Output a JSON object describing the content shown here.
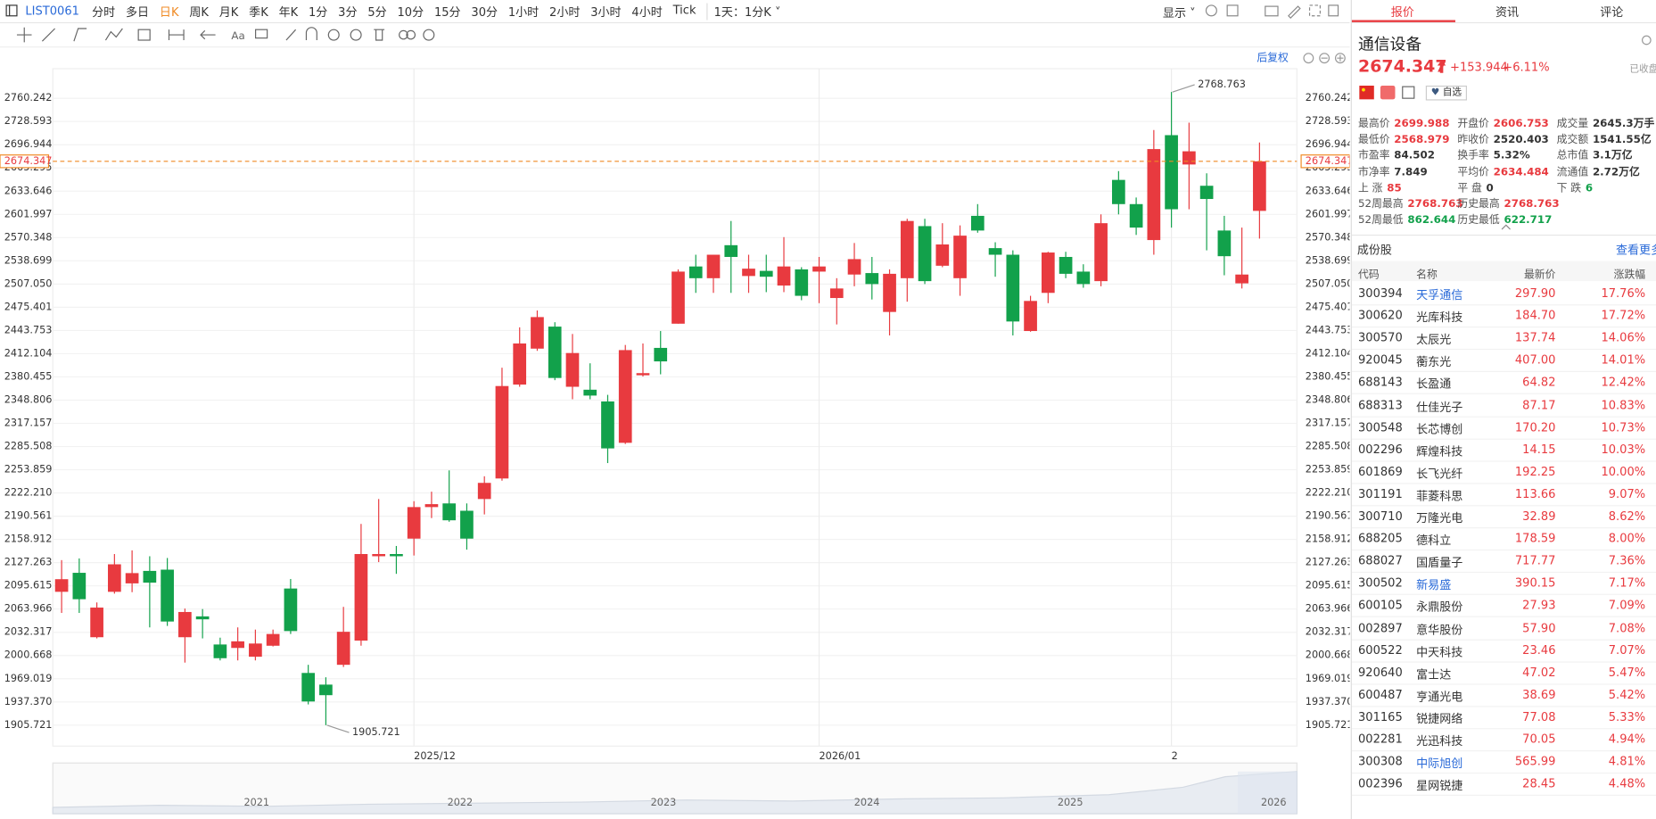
{
  "toolbar": {
    "symbol": "LIST0061",
    "intervals": [
      "分时",
      "多日",
      "日K",
      "周K",
      "月K",
      "季K",
      "年K",
      "1分",
      "3分",
      "5分",
      "10分",
      "15分",
      "30分",
      "1小时",
      "2小时",
      "3小时",
      "4小时",
      "Tick"
    ],
    "active_interval": 2,
    "period": "1天：1分K",
    "display": "显示"
  },
  "chart_data": {
    "type": "candlestick",
    "adjustment": "后复权",
    "up_color": "#e83a3f",
    "down_color": "#12a14b",
    "price_line_color": "#f08a24",
    "grid": true,
    "right_axis": true,
    "categories": [
      null,
      null,
      null,
      null,
      null,
      null,
      null,
      null,
      null,
      null,
      null,
      null,
      null,
      null,
      null,
      null,
      null,
      null,
      null,
      null,
      "2025/12",
      null,
      null,
      null,
      null,
      null,
      null,
      null,
      null,
      null,
      null,
      null,
      null,
      null,
      null,
      null,
      null,
      null,
      null,
      null,
      null,
      null,
      null,
      "2026/01",
      null,
      null,
      null,
      null,
      null,
      null,
      null,
      null,
      null,
      null,
      null,
      null,
      null,
      null,
      null,
      null,
      null,
      null,
      null,
      "2",
      null,
      null,
      null,
      null,
      null
    ],
    "open": [
      2087.5,
      2113.4,
      2025.6,
      2087.5,
      2099,
      2116,
      2117.7,
      2025.6,
      2054,
      2015.7,
      2011,
      1999,
      2014,
      2092,
      1976.9,
      1961,
      1988,
      2021,
      2136,
      2139,
      2160,
      2203,
      2208,
      2198,
      2214,
      2242,
      2370,
      2419,
      2449,
      2367,
      2363,
      2347,
      2290.6,
      2382.7,
      2420,
      2453,
      2531,
      2515,
      2560,
      2518,
      2525,
      2505,
      2527,
      2524,
      2488,
      2520,
      2522,
      2469,
      2515,
      2586,
      2532,
      2515,
      2600,
      2556,
      2547,
      2443,
      2495,
      2544,
      2524,
      2511,
      2649,
      2616,
      2567,
      2710,
      2670,
      2641,
      2580,
      2508,
      2606.753
    ],
    "high": [
      2130.7,
      2133,
      2073,
      2139,
      2144,
      2136,
      2133.6,
      2064.7,
      2064,
      2025,
      2039,
      2036,
      2036,
      2105,
      1988,
      1971,
      2067,
      2180,
      2214,
      2150,
      2211,
      2224,
      2253,
      2208,
      2245,
      2393,
      2448,
      2471,
      2455,
      2439,
      2399,
      2356,
      2424,
      2426,
      2443,
      2527,
      2547,
      2547,
      2593,
      2547,
      2547,
      2571,
      2530,
      2544,
      2515,
      2563,
      2544,
      2527,
      2596,
      2596,
      2590,
      2587,
      2616,
      2564,
      2553,
      2491,
      2551,
      2551,
      2534,
      2602,
      2661,
      2625,
      2717,
      2768.763,
      2727,
      2658,
      2600,
      2584,
      2699.988
    ],
    "low": [
      2058.7,
      2058.7,
      2024,
      2085,
      2087,
      2039,
      2041,
      1991,
      2024,
      1994,
      1994,
      1994,
      2013,
      2030,
      1934,
      1905.721,
      1985,
      2014,
      2128,
      2112,
      2137,
      2188,
      2183,
      2145,
      2193,
      2239,
      2367,
      2416,
      2376,
      2350,
      2350,
      2263,
      2289,
      2381,
      2384,
      2453,
      2495,
      2495,
      2495,
      2495,
      2496,
      2496,
      2485,
      2481,
      2452,
      2504,
      2486,
      2437,
      2483,
      2507,
      2530,
      2491,
      2577,
      2517,
      2437,
      2442,
      2481,
      2515,
      2502,
      2504,
      2602,
      2574,
      2547,
      2584,
      2609,
      2553,
      2519,
      2501,
      2568.979
    ],
    "close": [
      2104.7,
      2077.4,
      2066,
      2125,
      2113,
      2100,
      2047,
      2060,
      2050,
      1997,
      2020,
      2017,
      2030,
      2034,
      1938,
      1946.6,
      2033,
      2139,
      2139,
      2136,
      2203,
      2207,
      2185,
      2160,
      2236,
      2368,
      2426,
      2462,
      2379,
      2413,
      2355,
      2283,
      2417,
      2385.6,
      2401.6,
      2524,
      2515,
      2547,
      2544,
      2528,
      2517,
      2531,
      2491,
      2531,
      2501,
      2541,
      2507,
      2521,
      2593,
      2511,
      2561,
      2573,
      2580,
      2547,
      2456,
      2484,
      2550,
      2521,
      2507,
      2590,
      2616,
      2584,
      2691,
      2609,
      2688,
      2623,
      2545,
      2520,
      2674.347
    ],
    "ylim": [
      1877.2,
      2800.6
    ],
    "yticks": [
      2760.242,
      2728.593,
      2696.944,
      2665.295,
      2633.646,
      2601.997,
      2570.348,
      2538.699,
      {
        "value": 2507.05,
        "label": "2507.050"
      },
      2475.401,
      2443.753,
      2412.104,
      2380.455,
      2348.806,
      2317.157,
      2285.508,
      2253.859,
      {
        "value": 2222.21,
        "label": "2222.210"
      },
      2190.561,
      2158.912,
      2127.263,
      2095.615,
      2063.966,
      2032.317,
      2000.668,
      1969.019,
      {
        "value": 1937.37,
        "label": "1937.370"
      },
      1905.721
    ],
    "navigator_labels": [
      "2021",
      "2022",
      "2023",
      "2024",
      "2025",
      "2026"
    ]
  },
  "panel": {
    "tabs": [
      "报价",
      "资讯",
      "评论"
    ],
    "active_tab": 0,
    "name": "通信设备",
    "price": "2674.347",
    "change": "+153.944",
    "change_pct": "+6.11%",
    "status": "已收盘",
    "watch": "自选",
    "stats": [
      [
        {
          "label": "最高价",
          "value": "2699.988",
          "tone": "up"
        },
        {
          "label": "开盘价",
          "value": "2606.753",
          "tone": "up"
        },
        {
          "label": "成交量",
          "value": "2645.3万手",
          "tone": "flat"
        }
      ],
      [
        {
          "label": "最低价",
          "value": "2568.979",
          "tone": "up"
        },
        {
          "label": "昨收价",
          "value": "2520.403",
          "tone": "flat"
        },
        {
          "label": "成交额",
          "value": "1541.55亿",
          "tone": "flat"
        }
      ],
      [
        {
          "label": "市盈率",
          "value": "84.502",
          "tone": "flat"
        },
        {
          "label": "换手率",
          "value": "5.32%",
          "tone": "flat"
        },
        {
          "label": "总市值",
          "value": "3.1万亿",
          "tone": "flat"
        }
      ],
      [
        {
          "label": "市净率",
          "value": "7.849",
          "tone": "flat"
        },
        {
          "label": "平均价",
          "value": "2634.484",
          "tone": "up"
        },
        {
          "label": "流通值",
          "value": "2.72万亿",
          "tone": "flat"
        }
      ],
      [
        {
          "label": "上 涨",
          "value": "85",
          "tone": "up"
        },
        {
          "label": "平 盘",
          "value": "0",
          "tone": "flat"
        },
        {
          "label": "下 跌",
          "value": "6",
          "tone": "down"
        }
      ],
      [
        {
          "label": "52周最高",
          "value": "2768.763",
          "tone": "up"
        },
        {
          "label": "历史最高",
          "value": "2768.763",
          "tone": "up"
        }
      ],
      [
        {
          "label": "52周最低",
          "value": "862.644",
          "tone": "down"
        },
        {
          "label": "历史最低",
          "value": "622.717",
          "tone": "down"
        }
      ]
    ],
    "constituents_title": "成份股",
    "more": "查看更多",
    "table": {
      "header": [
        "代码",
        "名称",
        "最新价",
        "涨跌幅"
      ],
      "rows": [
        {
          "code": "300394",
          "name": "天孚通信",
          "price": "297.90",
          "change": "17.76%",
          "linked": true
        },
        {
          "code": "300620",
          "name": "光库科技",
          "price": "184.70",
          "change": "17.72%",
          "linked": false
        },
        {
          "code": "300570",
          "name": "太辰光",
          "price": "137.74",
          "change": "14.06%",
          "linked": false
        },
        {
          "code": "920045",
          "name": "蘅东光",
          "price": "407.00",
          "change": "14.01%",
          "linked": false
        },
        {
          "code": "688143",
          "name": "长盈通",
          "price": "64.82",
          "change": "12.42%",
          "linked": false
        },
        {
          "code": "688313",
          "name": "仕佳光子",
          "price": "87.17",
          "change": "10.83%",
          "linked": false
        },
        {
          "code": "300548",
          "name": "长芯博创",
          "price": "170.20",
          "change": "10.73%",
          "linked": false
        },
        {
          "code": "002296",
          "name": "辉煌科技",
          "price": "14.15",
          "change": "10.03%",
          "linked": false
        },
        {
          "code": "601869",
          "name": "长飞光纤",
          "price": "192.25",
          "change": "10.00%",
          "linked": false
        },
        {
          "code": "301191",
          "name": "菲菱科思",
          "price": "113.66",
          "change": "9.07%",
          "linked": false
        },
        {
          "code": "300710",
          "name": "万隆光电",
          "price": "32.89",
          "change": "8.62%",
          "linked": false
        },
        {
          "code": "688205",
          "name": "德科立",
          "price": "178.59",
          "change": "8.00%",
          "linked": false
        },
        {
          "code": "688027",
          "name": "国盾量子",
          "price": "717.77",
          "change": "7.36%",
          "linked": false
        },
        {
          "code": "300502",
          "name": "新易盛",
          "price": "390.15",
          "change": "7.17%",
          "linked": true
        },
        {
          "code": "600105",
          "name": "永鼎股份",
          "price": "27.93",
          "change": "7.09%",
          "linked": false
        },
        {
          "code": "002897",
          "name": "意华股份",
          "price": "57.90",
          "change": "7.08%",
          "linked": false
        },
        {
          "code": "600522",
          "name": "中天科技",
          "price": "23.46",
          "change": "7.07%",
          "linked": false
        },
        {
          "code": "920640",
          "name": "富士达",
          "price": "47.02",
          "change": "5.47%",
          "linked": false
        },
        {
          "code": "600487",
          "name": "亨通光电",
          "price": "38.69",
          "change": "5.42%",
          "linked": false
        },
        {
          "code": "301165",
          "name": "锐捷网络",
          "price": "77.08",
          "change": "5.33%",
          "linked": false
        },
        {
          "code": "002281",
          "name": "光迅科技",
          "price": "70.05",
          "change": "4.94%",
          "linked": false
        },
        {
          "code": "300308",
          "name": "中际旭创",
          "price": "565.99",
          "change": "4.81%",
          "linked": true
        },
        {
          "code": "002396",
          "name": "星网锐捷",
          "price": "28.45",
          "change": "4.48%",
          "linked": false
        }
      ]
    }
  }
}
